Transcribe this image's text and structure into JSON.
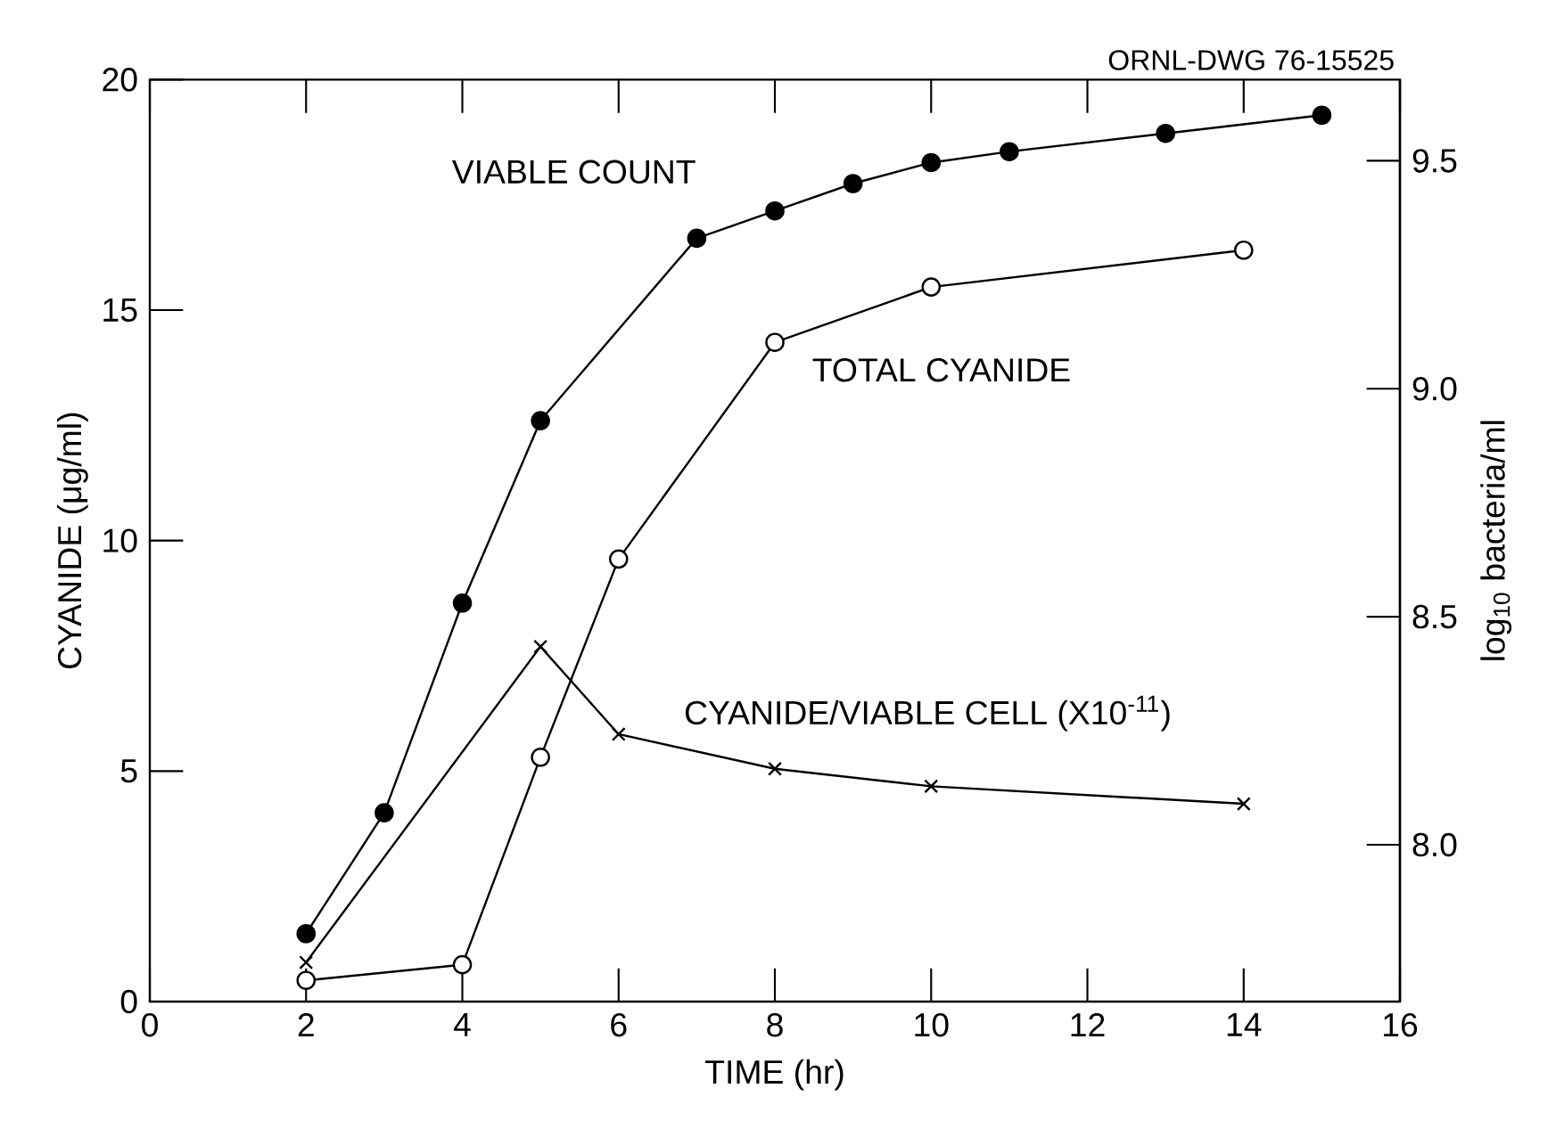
{
  "chart_data": {
    "type": "line",
    "xlabel": "TIME (hr)",
    "ylabel": "CYANIDE (μg/ml)",
    "y2label": "log$_{10}$ bacteria/ml",
    "annotations": [
      "ORNL-DWG 76-15525"
    ],
    "xlim": [
      0,
      16
    ],
    "xticks": [
      0,
      2,
      4,
      6,
      8,
      10,
      12,
      14,
      16
    ],
    "ylim": [
      0,
      20
    ],
    "yticks": [
      0,
      5,
      10,
      15,
      20
    ],
    "y2lim": [
      7.656,
      9.678
    ],
    "y2ticks": [
      {
        "value": 8,
        "label": "8.0"
      },
      {
        "value": 8.5,
        "label": "8.5"
      },
      {
        "value": 9,
        "label": "9.0"
      },
      {
        "value": 9.5,
        "label": "9.5"
      }
    ],
    "grid": false,
    "line_style": "solid",
    "series": [
      {
        "name": "VIABLE COUNT",
        "color": "#000000",
        "axis": "y2",
        "marker": "circle",
        "x": [
          2,
          3,
          4,
          5,
          7,
          8,
          9,
          10,
          11,
          13,
          15
        ],
        "values": [
          7.805,
          8.07,
          8.53,
          8.93,
          9.33,
          9.39,
          9.45,
          9.496,
          9.52,
          9.56,
          9.6
        ]
      },
      {
        "name": "TOTAL CYANIDE",
        "color": "#000000",
        "axis": "y",
        "marker": "circle",
        "x": [
          2,
          4,
          5,
          6,
          8,
          10,
          14
        ],
        "values": [
          0.46,
          0.8,
          5.3,
          9.6,
          14.3,
          15.5,
          16.3
        ]
      },
      {
        "name": "CYANIDE/VIABLE CELL (X10$^{-11}$)",
        "color": "#000000",
        "axis": "y",
        "marker": "cross",
        "x": [
          2,
          5,
          6,
          8,
          10,
          14
        ],
        "values": [
          0.85,
          7.7,
          5.8,
          5.05,
          4.67,
          4.29
        ]
      }
    ]
  }
}
